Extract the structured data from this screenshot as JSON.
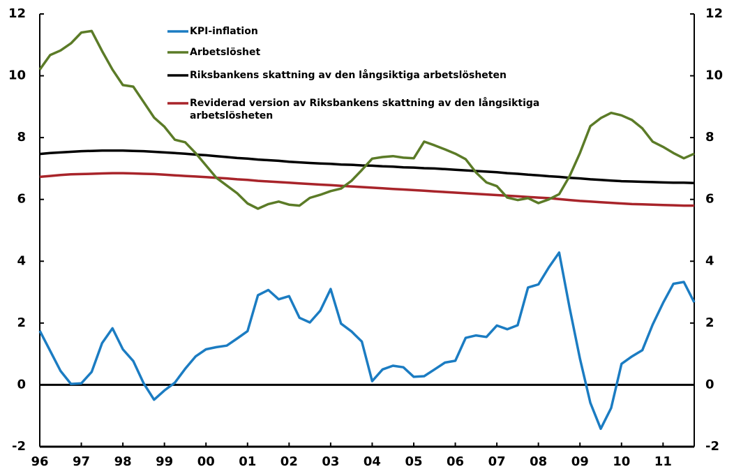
{
  "chart_data": {
    "type": "line",
    "categories": [
      "96",
      null,
      null,
      null,
      "97",
      null,
      null,
      null,
      "98",
      null,
      null,
      null,
      "99",
      null,
      null,
      null,
      "00",
      null,
      null,
      null,
      "01",
      null,
      null,
      null,
      "02",
      null,
      null,
      null,
      "03",
      null,
      null,
      null,
      "04",
      null,
      null,
      null,
      "05",
      null,
      null,
      null,
      "06",
      null,
      null,
      null,
      "07",
      null,
      null,
      null,
      "08",
      null,
      null,
      null,
      "09",
      null,
      null,
      null,
      "10",
      null,
      null,
      null,
      "11",
      null,
      null,
      null
    ],
    "series": [
      {
        "name": "KPI-inflation",
        "color": "#1b7cc2",
        "values": [
          1.75,
          1.1,
          0.45,
          0.03,
          0.05,
          0.42,
          1.35,
          1.83,
          1.15,
          0.77,
          0.05,
          -0.48,
          -0.18,
          0.07,
          0.52,
          0.92,
          1.15,
          1.22,
          1.27,
          1.5,
          1.74,
          2.9,
          3.07,
          2.77,
          2.87,
          2.17,
          2.02,
          2.4,
          3.1,
          1.98,
          1.73,
          1.4,
          0.12,
          0.5,
          0.62,
          0.57,
          0.26,
          0.28,
          0.5,
          0.72,
          0.78,
          1.52,
          1.6,
          1.55,
          1.92,
          1.8,
          1.93,
          3.15,
          3.25,
          3.8,
          4.28,
          2.5,
          0.85,
          -0.58,
          -1.42,
          -0.75,
          0.68,
          0.92,
          1.12,
          1.95,
          2.65,
          3.27,
          3.33,
          2.67
        ]
      },
      {
        "name": "Arbetslöshet",
        "color": "#5b7b27",
        "values": [
          10.2,
          10.67,
          10.82,
          11.05,
          11.4,
          11.45,
          10.8,
          10.2,
          9.7,
          9.65,
          9.15,
          8.65,
          8.35,
          7.93,
          7.85,
          7.5,
          7.1,
          6.7,
          6.45,
          6.2,
          5.87,
          5.7,
          5.85,
          5.93,
          5.83,
          5.8,
          6.05,
          6.15,
          6.27,
          6.35,
          6.6,
          6.95,
          7.32,
          7.37,
          7.4,
          7.35,
          7.33,
          7.87,
          7.75,
          7.62,
          7.48,
          7.3,
          6.87,
          6.55,
          6.43,
          6.06,
          5.98,
          6.04,
          5.88,
          6.0,
          6.17,
          6.75,
          7.5,
          8.37,
          8.63,
          8.8,
          8.72,
          8.57,
          8.3,
          7.87,
          7.7,
          7.5,
          7.33,
          7.48
        ]
      },
      {
        "name": "Riksbankens skattning av den långsiktiga arbetslösheten",
        "color": "#000000",
        "values": [
          7.47,
          7.5,
          7.52,
          7.54,
          7.56,
          7.57,
          7.58,
          7.58,
          7.58,
          7.57,
          7.56,
          7.54,
          7.52,
          7.5,
          7.48,
          7.45,
          7.43,
          7.4,
          7.37,
          7.34,
          7.32,
          7.29,
          7.27,
          7.25,
          7.22,
          7.2,
          7.18,
          7.16,
          7.15,
          7.13,
          7.12,
          7.1,
          7.09,
          7.07,
          7.06,
          7.04,
          7.03,
          7.01,
          7.0,
          6.98,
          6.96,
          6.94,
          6.92,
          6.9,
          6.88,
          6.85,
          6.83,
          6.8,
          6.78,
          6.75,
          6.73,
          6.7,
          6.68,
          6.65,
          6.63,
          6.61,
          6.59,
          6.58,
          6.57,
          6.56,
          6.55,
          6.54,
          6.54,
          6.53
        ]
      },
      {
        "name": "Reviderad version av Riksbankens skattning av den långsiktiga arbetslösheten",
        "color": "#a8242a",
        "values": [
          6.73,
          6.76,
          6.79,
          6.81,
          6.82,
          6.83,
          6.84,
          6.85,
          6.85,
          6.84,
          6.83,
          6.82,
          6.8,
          6.78,
          6.76,
          6.74,
          6.72,
          6.7,
          6.68,
          6.65,
          6.63,
          6.6,
          6.58,
          6.56,
          6.54,
          6.52,
          6.5,
          6.48,
          6.46,
          6.44,
          6.42,
          6.4,
          6.38,
          6.36,
          6.34,
          6.32,
          6.3,
          6.28,
          6.26,
          6.24,
          6.22,
          6.2,
          6.18,
          6.16,
          6.14,
          6.12,
          6.1,
          6.08,
          6.06,
          6.04,
          6.01,
          5.98,
          5.95,
          5.93,
          5.91,
          5.89,
          5.87,
          5.85,
          5.84,
          5.83,
          5.82,
          5.81,
          5.8,
          5.8
        ]
      }
    ],
    "ylim": [
      -2,
      12
    ],
    "yticks": [
      -2,
      0,
      2,
      4,
      6,
      8,
      10,
      12
    ],
    "y2lim": [
      -2,
      12
    ],
    "y2ticks": [
      -2,
      0,
      2,
      4,
      6,
      8,
      10,
      12
    ],
    "grid": false
  }
}
